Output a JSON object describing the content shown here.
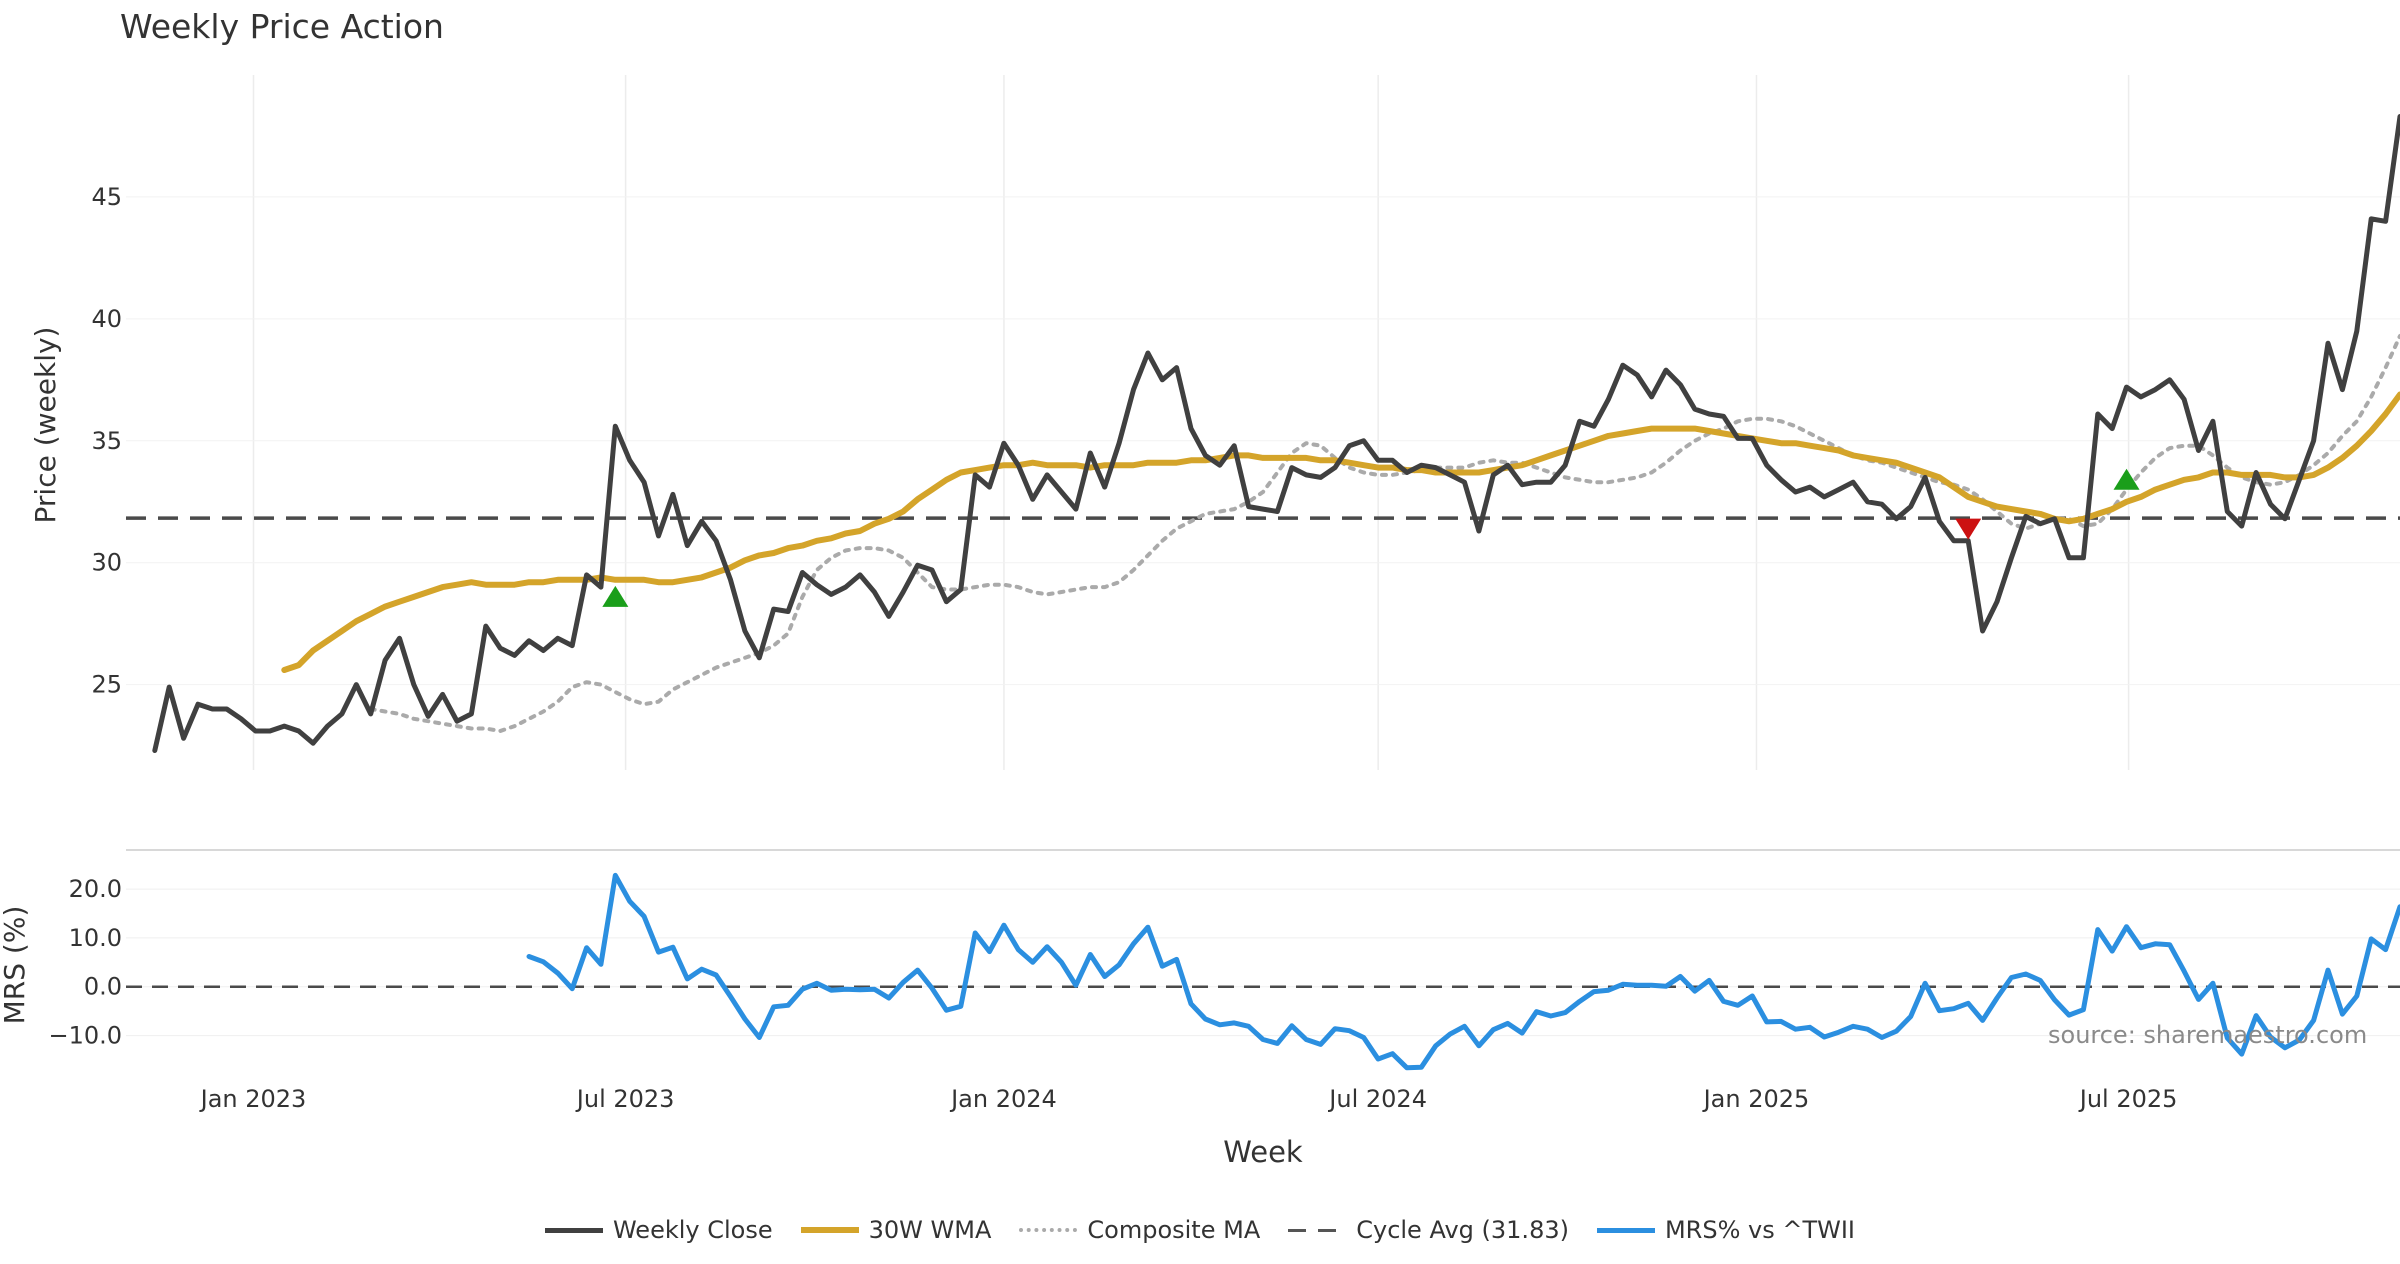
{
  "chart_data": {
    "type": "line",
    "title": "Weekly Price Action",
    "xlabel": "Week",
    "source_text": "source: sharemaestro.com",
    "x_ticks": [
      "Jan 2023",
      "Jul 2023",
      "Jan 2024",
      "Jul 2024",
      "Jan 2025",
      "Jul 2025"
    ],
    "x_range": [
      "2022-10-31",
      "2025-11-10"
    ],
    "price_panel": {
      "ylabel": "Price (weekly)",
      "ylim": [
        21.5,
        50
      ],
      "yticks": [
        "25",
        "30",
        "35",
        "40",
        "45"
      ],
      "grid": true,
      "cycle_avg": 31.83,
      "weekly_close": [
        22.3,
        24.9,
        22.8,
        24.2,
        24,
        24,
        23.6,
        23.1,
        23.1,
        23.3,
        23.1,
        22.6,
        23.3,
        23.8,
        25,
        23.8,
        26,
        26.9,
        25,
        23.7,
        24.6,
        23.5,
        23.8,
        27.4,
        26.5,
        26.2,
        26.8,
        26.4,
        26.9,
        26.6,
        29.5,
        29,
        35.6,
        34.2,
        33.3,
        31.1,
        32.8,
        30.7,
        31.7,
        30.9,
        29.3,
        27.2,
        26.1,
        28.1,
        28,
        29.6,
        29.1,
        28.7,
        29,
        29.5,
        28.8,
        27.8,
        28.8,
        29.9,
        29.7,
        28.4,
        28.9,
        33.6,
        33.1,
        34.9,
        34,
        32.6,
        33.6,
        32.9,
        32.2,
        34.5,
        33.1,
        34.9,
        37.1,
        38.6,
        37.5,
        38,
        35.5,
        34.4,
        34,
        34.8,
        32.3,
        32.2,
        32.1,
        33.9,
        33.6,
        33.5,
        33.9,
        34.8,
        35,
        34.2,
        34.2,
        33.7,
        34,
        33.9,
        33.6,
        33.3,
        31.3,
        33.6,
        34,
        33.2,
        33.3,
        33.3,
        34,
        35.8,
        35.6,
        36.7,
        38.1,
        37.7,
        36.8,
        37.9,
        37.3,
        36.3,
        36.1,
        36,
        35.1,
        35.1,
        34,
        33.4,
        32.9,
        33.1,
        32.7,
        33,
        33.3,
        32.5,
        32.4,
        31.8,
        32.3,
        33.5,
        31.7,
        30.9,
        30.9,
        27.2,
        28.4,
        30.2,
        31.9,
        31.6,
        31.8,
        30.2,
        30.2,
        36.1,
        35.5,
        37.2,
        36.8,
        37.1,
        37.5,
        36.7,
        34.6,
        35.8,
        32.1,
        31.5,
        33.7,
        32.4,
        31.8,
        33.4,
        35,
        39,
        37.1,
        39.5,
        44.1,
        44,
        48.3
      ],
      "wma_30w": [
        25.6,
        25.8,
        26.4,
        26.8,
        27.2,
        27.6,
        27.9,
        28.2,
        28.4,
        28.6,
        28.8,
        29,
        29.1,
        29.2,
        29.1,
        29.1,
        29.1,
        29.2,
        29.2,
        29.3,
        29.3,
        29.3,
        29.4,
        29.3,
        29.3,
        29.3,
        29.2,
        29.2,
        29.3,
        29.4,
        29.6,
        29.8,
        30.1,
        30.3,
        30.4,
        30.6,
        30.7,
        30.9,
        31,
        31.2,
        31.3,
        31.6,
        31.8,
        32.1,
        32.6,
        33,
        33.4,
        33.7,
        33.8,
        33.9,
        34,
        34,
        34.1,
        34,
        34,
        34,
        33.9,
        34,
        34,
        34,
        34.1,
        34.1,
        34.1,
        34.2,
        34.2,
        34.3,
        34.4,
        34.4,
        34.3,
        34.3,
        34.3,
        34.3,
        34.2,
        34.2,
        34.1,
        34,
        33.9,
        33.9,
        33.8,
        33.8,
        33.7,
        33.7,
        33.7,
        33.7,
        33.8,
        33.9,
        34,
        34.2,
        34.4,
        34.6,
        34.8,
        35,
        35.2,
        35.3,
        35.4,
        35.5,
        35.5,
        35.5,
        35.5,
        35.4,
        35.3,
        35.2,
        35.1,
        35,
        34.9,
        34.9,
        34.8,
        34.7,
        34.6,
        34.4,
        34.3,
        34.2,
        34.1,
        33.9,
        33.7,
        33.5,
        33.1,
        32.7,
        32.5,
        32.3,
        32.2,
        32.1,
        32,
        31.8,
        31.7,
        31.8,
        32,
        32.2,
        32.5,
        32.7,
        33,
        33.2,
        33.4,
        33.5,
        33.7,
        33.7,
        33.6,
        33.6,
        33.6,
        33.5,
        33.5,
        33.6,
        33.9,
        34.3,
        34.8,
        35.4,
        36.1,
        36.9
      ],
      "composite_ma": [
        24,
        23.9,
        23.8,
        23.6,
        23.5,
        23.4,
        23.3,
        23.2,
        23.2,
        23.1,
        23.3,
        23.6,
        23.9,
        24.3,
        24.9,
        25.1,
        25,
        24.7,
        24.4,
        24.2,
        24.3,
        24.8,
        25.1,
        25.4,
        25.7,
        25.9,
        26.1,
        26.3,
        26.6,
        27.1,
        28.6,
        29.7,
        30.2,
        30.5,
        30.6,
        30.6,
        30.5,
        30.2,
        29.6,
        29,
        28.9,
        28.9,
        29,
        29.1,
        29.1,
        29,
        28.8,
        28.7,
        28.8,
        28.9,
        29,
        29,
        29.2,
        29.7,
        30.3,
        30.9,
        31.4,
        31.7,
        32,
        32.1,
        32.2,
        32.5,
        32.9,
        33.7,
        34.5,
        34.9,
        34.8,
        34.3,
        33.9,
        33.7,
        33.6,
        33.6,
        33.7,
        33.8,
        33.9,
        33.9,
        33.9,
        34.1,
        34.2,
        34.1,
        34.1,
        33.9,
        33.7,
        33.5,
        33.4,
        33.3,
        33.3,
        33.4,
        33.5,
        33.7,
        34.1,
        34.6,
        35,
        35.3,
        35.5,
        35.8,
        35.9,
        35.9,
        35.8,
        35.6,
        35.3,
        35,
        34.7,
        34.4,
        34.2,
        34.1,
        33.9,
        33.7,
        33.5,
        33.3,
        33.2,
        33,
        32.6,
        32.1,
        31.6,
        31.4,
        31.6,
        31.8,
        31.8,
        31.5,
        31.6,
        32.2,
        33,
        33.7,
        34.3,
        34.7,
        34.8,
        34.8,
        34.4,
        33.9,
        33.5,
        33.3,
        33.2,
        33.3,
        33.6,
        34,
        34.5,
        35.2,
        35.8,
        36.8,
        38,
        39.3
      ],
      "buy_signals": [
        {
          "x": "2023-06-26",
          "y": 28.6
        },
        {
          "x": "2025-06-30",
          "y": 33.4
        }
      ],
      "sell_signals": [
        {
          "x": "2025-04-14",
          "y": 31.4
        }
      ]
    },
    "mrs_panel": {
      "ylabel": "MRS (%)",
      "ylim": [
        -15,
        28
      ],
      "yticks": [
        "20.0",
        "10.0",
        "0.0",
        "−10.0"
      ],
      "zero_line": 0,
      "values": [
        6.2,
        5.1,
        2.8,
        -0.4,
        8,
        4.6,
        22.8,
        17.5,
        14.4,
        7.1,
        8.1,
        1.6,
        3.6,
        2.4,
        -2,
        -6.6,
        -10.4,
        -4.1,
        -3.8,
        -0.5,
        0.7,
        -0.7,
        -0.5,
        -0.6,
        -0.5,
        -2.3,
        0.9,
        3.4,
        -0.3,
        -4.8,
        -4,
        11,
        7.2,
        12.6,
        7.6,
        5,
        8.2,
        5,
        0.3,
        6.6,
        2.1,
        4.5,
        8.8,
        12.2,
        4.2,
        5.6,
        -3.5,
        -6.6,
        -7.8,
        -7.4,
        -8.1,
        -10.8,
        -11.6,
        -8,
        -10.8,
        -11.8,
        -8.6,
        -9,
        -10.4,
        -14.8,
        -13.7,
        -16.6,
        -16.5,
        -12.1,
        -9.7,
        -8.1,
        -12.1,
        -8.8,
        -7.5,
        -9.5,
        -5.1,
        -6,
        -5.3,
        -3,
        -1,
        -0.7,
        0.5,
        0.3,
        0.3,
        0.1,
        2.1,
        -0.9,
        1.3,
        -3,
        -3.8,
        -1.9,
        -7.2,
        -7.1,
        -8.7,
        -8.3,
        -10.3,
        -9.3,
        -8.1,
        -8.7,
        -10.4,
        -9.1,
        -6.1,
        0.7,
        -4.9,
        -4.5,
        -3.4,
        -6.9,
        -2.3,
        1.9,
        2.6,
        1.3,
        -2.7,
        -5.8,
        -4.7,
        11.7,
        7.3,
        12.3,
        8,
        8.8,
        8.6,
        3.2,
        -2.6,
        0.7,
        -10.5,
        -13.8,
        -5.9,
        -10.3,
        -12.5,
        -10.9,
        -6.9,
        3.4,
        -5.6,
        -1.9,
        9.8,
        7.6,
        16.4
      ]
    },
    "legend": {
      "position": "bottom-center",
      "items": [
        {
          "label": "Weekly Close",
          "color": "#404040",
          "style": "solid"
        },
        {
          "label": "30W WMA",
          "color": "#d4a42a",
          "style": "solid"
        },
        {
          "label": "Composite MA",
          "color": "#aaaaaa",
          "style": "dotted"
        },
        {
          "label": "Cycle Avg (31.83)",
          "color": "#555555",
          "style": "dashed"
        },
        {
          "label": "MRS% vs ^TWII",
          "color": "#2b8fe0",
          "style": "solid"
        }
      ]
    },
    "colors": {
      "close": "#404040",
      "wma": "#d4a42a",
      "composite": "#aaaaaa",
      "cycle": "#4a4a4a",
      "mrs": "#2b8fe0",
      "buy": "#1a9e1a",
      "sell": "#cc1111"
    }
  }
}
